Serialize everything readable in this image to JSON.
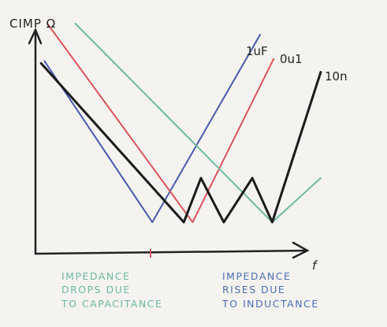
{
  "chart_data": {
    "type": "line",
    "ylabel": "CIMP Ω",
    "xlabel": "f",
    "series": [
      {
        "name": "1uF",
        "color": "#4a5aa8",
        "points": [
          [
            0.04,
            0.83
          ],
          [
            0.52,
            0.1
          ],
          [
            1.0,
            0.95
          ]
        ]
      },
      {
        "name": "0u1",
        "color": "#d9545c",
        "points": [
          [
            0.05,
            1.0
          ],
          [
            0.66,
            0.1
          ],
          [
            1.0,
            0.84
          ]
        ]
      },
      {
        "name": "10n",
        "color": "#6fb9a4",
        "points": [
          [
            0.14,
            1.0
          ],
          [
            0.83,
            0.1
          ],
          [
            1.0,
            0.3
          ]
        ]
      },
      {
        "name": "",
        "color": "#1b1b1b",
        "points": [
          [
            0.02,
            0.82
          ],
          [
            0.52,
            0.1
          ],
          [
            0.58,
            0.3
          ],
          [
            0.66,
            0.1
          ],
          [
            0.76,
            0.3
          ],
          [
            0.83,
            0.1
          ],
          [
            1.0,
            0.78
          ]
        ]
      }
    ],
    "notes": {
      "capacitance": [
        "IMPEDANCE",
        "DROPS DUE",
        "TO CAPACITANCE"
      ],
      "inductance": [
        "IMPEDANCE",
        "RISES DUE",
        "TO INDUCTANCE"
      ]
    },
    "labels": {
      "ylabel": "CIMP Ω",
      "xlabel": "f",
      "s1": "1uF",
      "s2": "0u1",
      "s3": "10n"
    }
  }
}
